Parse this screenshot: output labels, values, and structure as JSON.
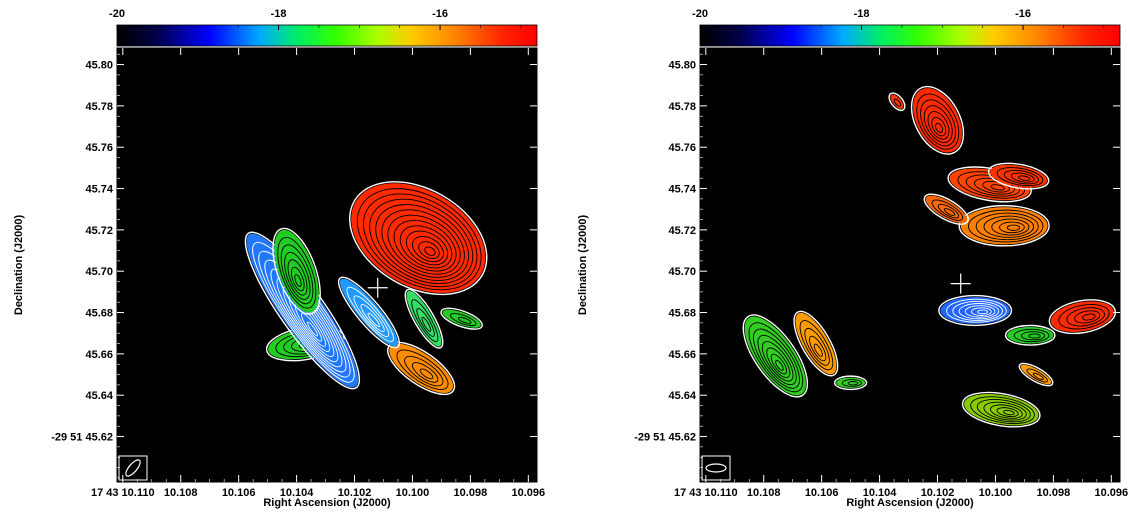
{
  "chart_data": [
    {
      "type": "scatter",
      "panel": "left",
      "colorbar": {
        "ticks": [
          "-20",
          "-18",
          "-16"
        ],
        "min": -20,
        "max": -14.8,
        "colormap": "rainbow (black-blue-green-orange-red)"
      },
      "xlabel": "Right Ascension (J2000)",
      "ylabel": "Declination (J2000)",
      "x_ticks": [
        "17 43 10.110",
        "10.108",
        "10.106",
        "10.104",
        "10.102",
        "10.100",
        "10.098",
        "10.096"
      ],
      "y_ticks": [
        "-29 51 45.62",
        "45.64",
        "45.66",
        "45.68",
        "45.70",
        "45.72",
        "45.74",
        "45.76",
        "45.78",
        "45.80"
      ],
      "xlim": [
        10.1102,
        10.0957
      ],
      "ylim": [
        45.808,
        45.598
      ],
      "background": "#000000",
      "cross": {
        "ra": 10.1012,
        "dec": 45.692
      },
      "beam_box": "bottom-left",
      "series": [
        {
          "ra": 10.0997,
          "dec": 45.653,
          "rx": 0.0013,
          "ry": 0.007,
          "angle": 35,
          "color": "#ff8c00",
          "contours": 4
        },
        {
          "ra": 10.1037,
          "dec": 45.665,
          "rx": 0.0013,
          "ry": 0.007,
          "angle": -10,
          "color": "#22cc22",
          "contours": 5
        },
        {
          "ra": 10.1038,
          "dec": 45.681,
          "rx": 0.0032,
          "ry": 0.01,
          "angle": 55,
          "color": "#2277ff",
          "contours": 10
        },
        {
          "ra": 10.1015,
          "dec": 45.68,
          "rx": 0.0015,
          "ry": 0.005,
          "angle": 50,
          "color": "#2299ff",
          "contours": 4
        },
        {
          "ra": 10.0996,
          "dec": 45.677,
          "rx": 0.0011,
          "ry": 0.004,
          "angle": 60,
          "color": "#33dd66",
          "contours": 3
        },
        {
          "ra": 10.0983,
          "dec": 45.677,
          "rx": 0.0007,
          "ry": 0.003,
          "angle": 20,
          "color": "#22cc22",
          "contours": 2
        },
        {
          "ra": 10.104,
          "dec": 45.7,
          "rx": 0.0015,
          "ry": 0.0085,
          "angle": 70,
          "color": "#22cc22",
          "contours": 6
        },
        {
          "ra": 10.0998,
          "dec": 45.716,
          "rx": 0.0025,
          "ry": 0.023,
          "angle": 30,
          "color": "#ff2a00",
          "contours": 12
        }
      ]
    },
    {
      "type": "scatter",
      "panel": "right",
      "colorbar": {
        "ticks": [
          "-20",
          "-18",
          "-16"
        ],
        "min": -20,
        "max": -14.8,
        "colormap": "rainbow (black-blue-green-orange-red)"
      },
      "xlabel": "Right Ascension (J2000)",
      "ylabel": "Declination (J2000)",
      "x_ticks": [
        "17 43 10.110",
        "10.108",
        "10.106",
        "10.104",
        "10.102",
        "10.100",
        "10.098",
        "10.096"
      ],
      "y_ticks": [
        "-29 51 45.62",
        "45.64",
        "45.66",
        "45.68",
        "45.70",
        "45.72",
        "45.74",
        "45.76",
        "45.78",
        "45.80"
      ],
      "xlim": [
        10.1102,
        10.0957
      ],
      "ylim": [
        45.808,
        45.598
      ],
      "background": "#000000",
      "cross": {
        "ra": 10.1012,
        "dec": 45.694
      },
      "beam_box": "bottom-left",
      "series": [
        {
          "ra": 10.1076,
          "dec": 45.659,
          "rx": 0.0016,
          "ry": 0.009,
          "angle": 55,
          "color": "#33cc22",
          "contours": 7
        },
        {
          "ra": 10.1062,
          "dec": 45.665,
          "rx": 0.0012,
          "ry": 0.006,
          "angle": 60,
          "color": "#ff9a00",
          "contours": 4
        },
        {
          "ra": 10.105,
          "dec": 45.646,
          "rx": 0.0005,
          "ry": 0.0025,
          "angle": 0,
          "color": "#33cc22",
          "contours": 2
        },
        {
          "ra": 10.0998,
          "dec": 45.633,
          "rx": 0.0013,
          "ry": 0.007,
          "angle": 10,
          "color": "#88cc00",
          "contours": 6
        },
        {
          "ra": 10.0986,
          "dec": 45.65,
          "rx": 0.0006,
          "ry": 0.0025,
          "angle": 30,
          "color": "#ff9a00",
          "contours": 2
        },
        {
          "ra": 10.0988,
          "dec": 45.669,
          "rx": 0.0008,
          "ry": 0.004,
          "angle": 0,
          "color": "#22cc22",
          "contours": 3
        },
        {
          "ra": 10.1007,
          "dec": 45.681,
          "rx": 0.0012,
          "ry": 0.0065,
          "angle": 0,
          "color": "#2266ff",
          "contours": 6
        },
        {
          "ra": 10.097,
          "dec": 45.678,
          "rx": 0.0011,
          "ry": 0.007,
          "angle": -10,
          "color": "#ff2a00",
          "contours": 4
        },
        {
          "ra": 10.0997,
          "dec": 45.722,
          "rx": 0.0015,
          "ry": 0.009,
          "angle": 0,
          "color": "#ff8000",
          "contours": 6
        },
        {
          "ra": 10.1017,
          "dec": 45.73,
          "rx": 0.0008,
          "ry": 0.004,
          "angle": 30,
          "color": "#ff6600",
          "contours": 3
        },
        {
          "ra": 10.1002,
          "dec": 45.742,
          "rx": 0.0014,
          "ry": 0.007,
          "angle": 10,
          "color": "#ff4400",
          "contours": 5
        },
        {
          "ra": 10.0992,
          "dec": 45.746,
          "rx": 0.001,
          "ry": 0.005,
          "angle": 10,
          "color": "#ff3300",
          "contours": 4
        },
        {
          "ra": 10.102,
          "dec": 45.773,
          "rx": 0.0012,
          "ry": 0.01,
          "angle": 62,
          "color": "#ff2a00",
          "contours": 6
        },
        {
          "ra": 10.1034,
          "dec": 45.782,
          "rx": 0.0003,
          "ry": 0.002,
          "angle": 50,
          "color": "#ff3300",
          "contours": 1
        }
      ]
    }
  ]
}
